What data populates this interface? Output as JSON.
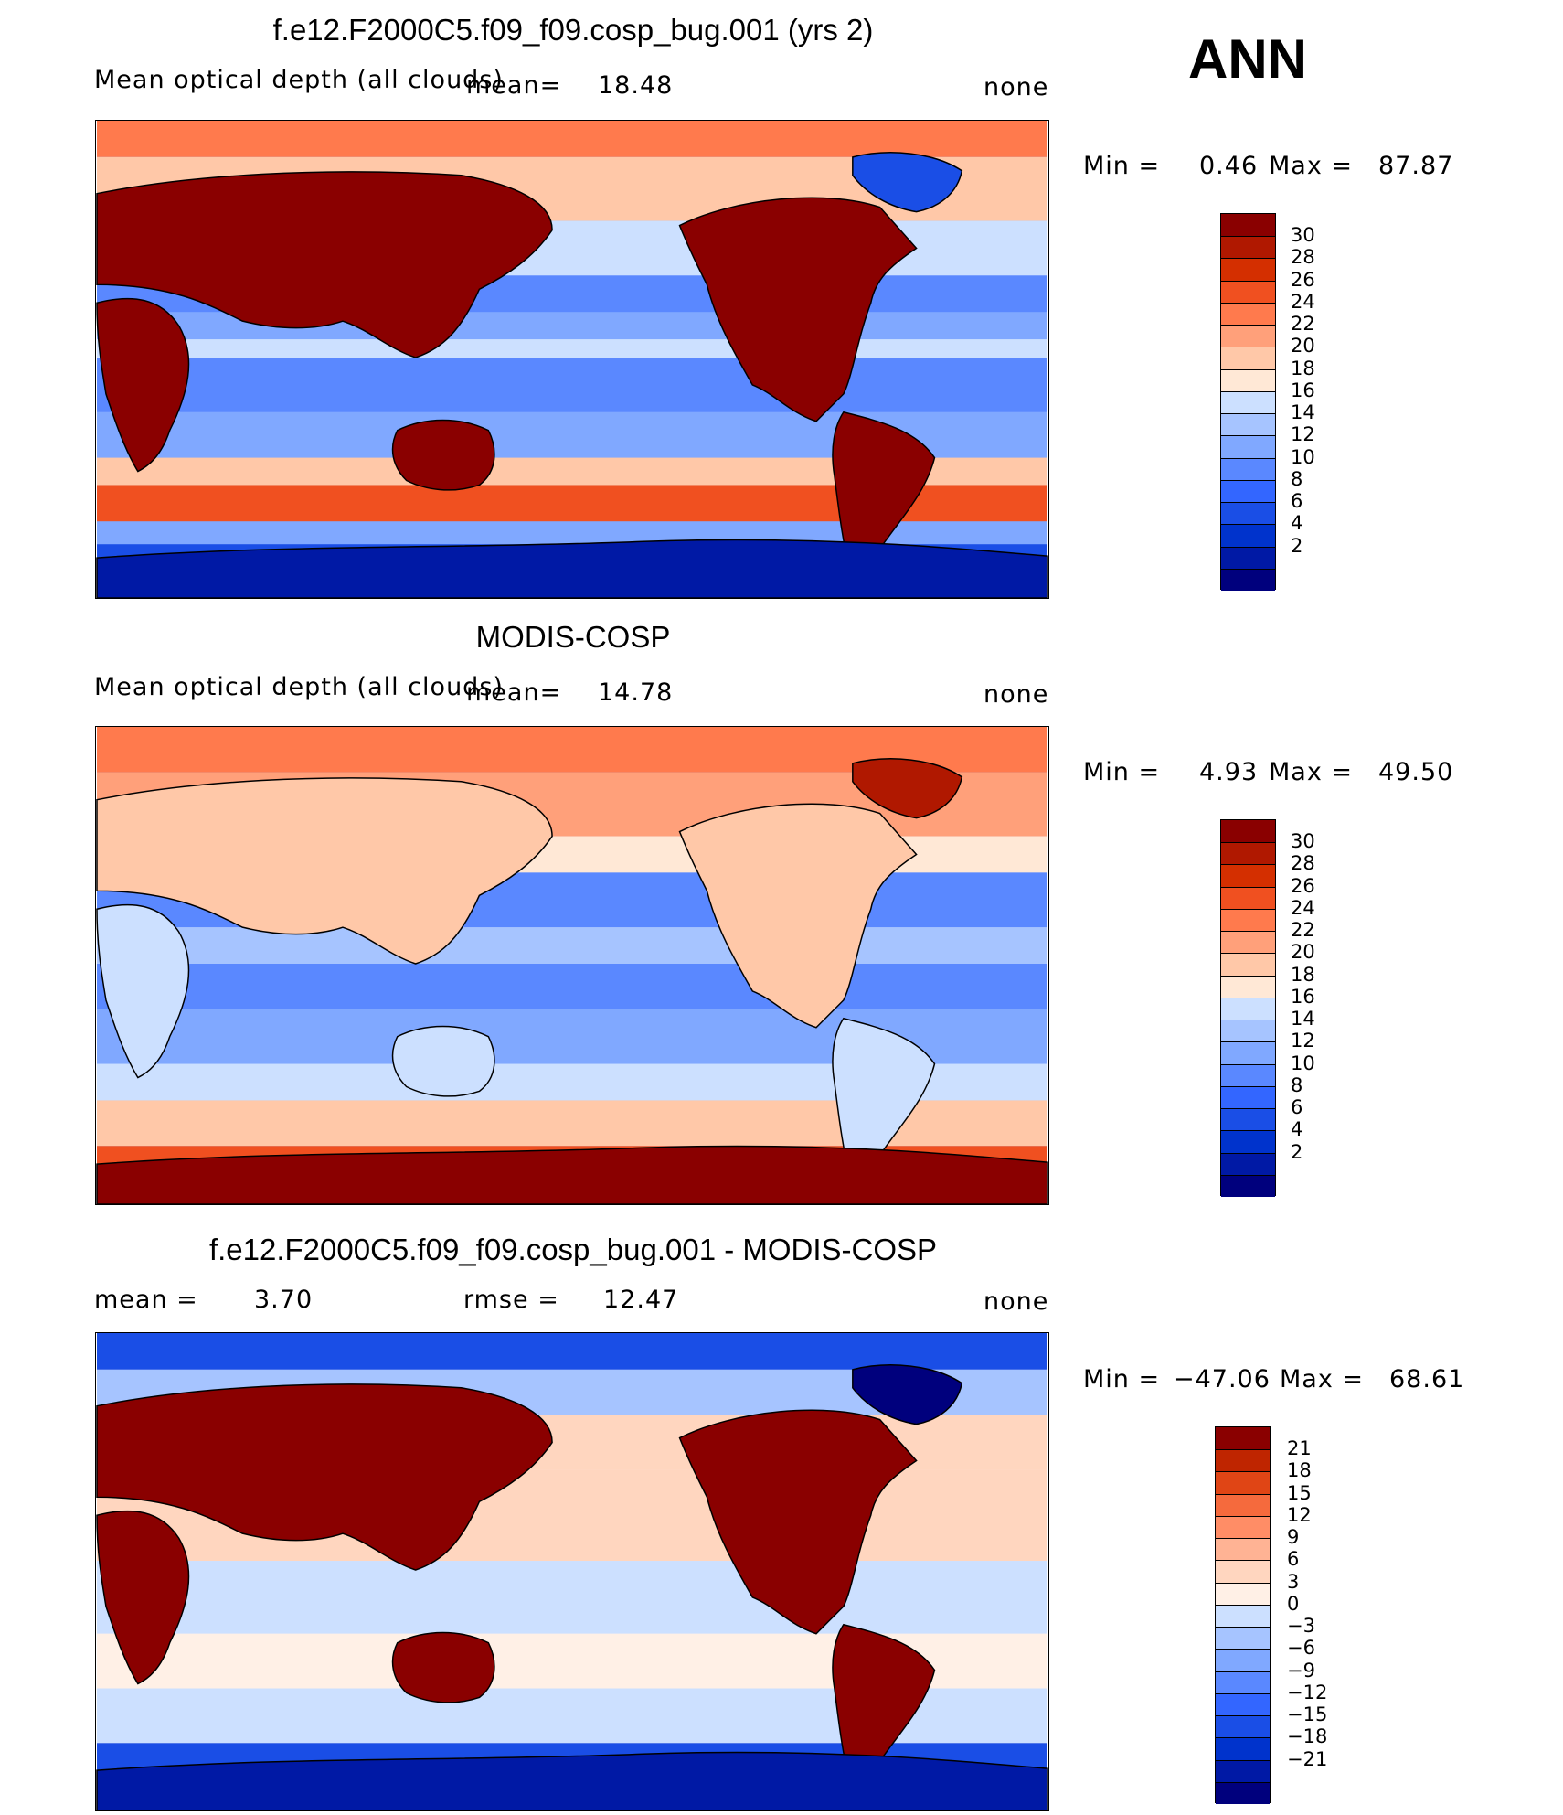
{
  "season": "ANN",
  "colors": {
    "scale_abs": [
      "#00007d",
      "#0019a5",
      "#0033cc",
      "#1a4ee6",
      "#3366ff",
      "#5a88ff",
      "#80a8ff",
      "#a6c4ff",
      "#cce0ff",
      "#ffe8d6",
      "#ffc8a8",
      "#ffa07a",
      "#ff7a4d",
      "#f05020",
      "#d42f00",
      "#b01800",
      "#8a0000"
    ],
    "scale_diff": [
      "#00007d",
      "#0019a5",
      "#0033cc",
      "#1a4ee6",
      "#3366ff",
      "#5a88ff",
      "#80a8ff",
      "#a6c4ff",
      "#cce0ff",
      "#fff0e6",
      "#ffd6bf",
      "#ffb394",
      "#ff8d66",
      "#f56a3d",
      "#e04515",
      "#bf2500",
      "#8a0000"
    ],
    "land": "#8a0000",
    "coast": "#000000"
  },
  "panels": [
    {
      "title": "f.e12.F2000C5.f09_f09.cosp_bug.001 (yrs 2)",
      "left_label": "Mean optical depth (all clouds)",
      "mid_label": "mean=",
      "mid_value": "18.48",
      "right_label": "none",
      "min_label": "Min =",
      "min_value": "0.46",
      "max_label": "Max =",
      "max_value": "87.87",
      "colorbar_labels": [
        "30",
        "28",
        "26",
        "24",
        "22",
        "20",
        "18",
        "16",
        "14",
        "12",
        "10",
        "8",
        "6",
        "4",
        "2"
      ]
    },
    {
      "title": "MODIS-COSP",
      "left_label": "Mean optical depth (all clouds)",
      "mid_label": "mean=",
      "mid_value": "14.78",
      "right_label": "none",
      "min_label": "Min =",
      "min_value": "4.93",
      "max_label": "Max =",
      "max_value": "49.50",
      "colorbar_labels": [
        "30",
        "28",
        "26",
        "24",
        "22",
        "20",
        "18",
        "16",
        "14",
        "12",
        "10",
        "8",
        "6",
        "4",
        "2"
      ]
    },
    {
      "title": "f.e12.F2000C5.f09_f09.cosp_bug.001 - MODIS-COSP",
      "left_label": "mean =",
      "left_value": "3.70",
      "mid_label": "rmse =",
      "mid_value": "12.47",
      "right_label": "none",
      "min_label": "Min =",
      "min_value": "−47.06",
      "max_label": "Max =",
      "max_value": "68.61",
      "colorbar_labels": [
        "21",
        "18",
        "15",
        "12",
        "9",
        "6",
        "3",
        "0",
        "−3",
        "−6",
        "−9",
        "−12",
        "−15",
        "−18",
        "−21"
      ]
    }
  ]
}
